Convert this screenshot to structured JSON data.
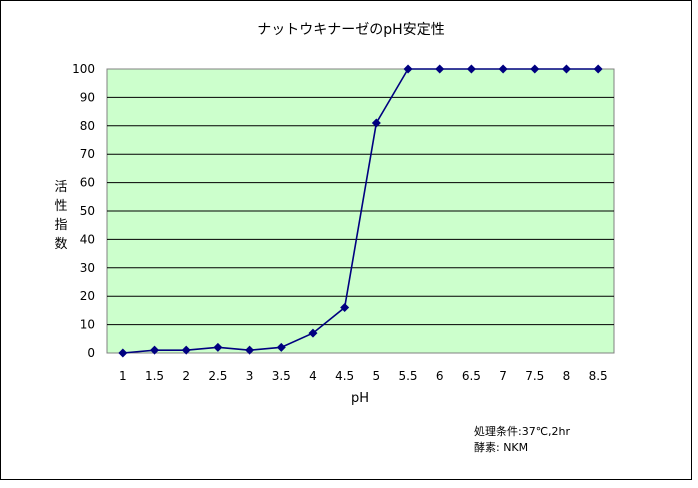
{
  "chart_data": {
    "type": "line",
    "title": "ナットウキナーゼのpH安定性",
    "xlabel": "pH",
    "ylabel": "活性指数",
    "categories": [
      "1",
      "1.5",
      "2",
      "2.5",
      "3",
      "3.5",
      "4",
      "4.5",
      "5",
      "5.5",
      "6",
      "6.5",
      "7",
      "7.5",
      "8",
      "8.5"
    ],
    "x": [
      1,
      1.5,
      2,
      2.5,
      3,
      3.5,
      4,
      4.5,
      5,
      5.5,
      6,
      6.5,
      7,
      7.5,
      8,
      8.5
    ],
    "series": [
      {
        "values": [
          0,
          1,
          1,
          2,
          1,
          2,
          7,
          16,
          81,
          100,
          100,
          100,
          100,
          100,
          100,
          100
        ]
      }
    ],
    "ylim": [
      0,
      100
    ],
    "yticks": [
      0,
      10,
      20,
      30,
      40,
      50,
      60,
      70,
      80,
      90,
      100
    ],
    "grid": "horizontal",
    "legend": "none",
    "colors": {
      "plot_bg": "#ccffcc",
      "line": "#000080",
      "marker": "#000080"
    }
  },
  "notes": {
    "line1": "処理条件:37℃,2hr",
    "line2": "酵素: NKM"
  }
}
